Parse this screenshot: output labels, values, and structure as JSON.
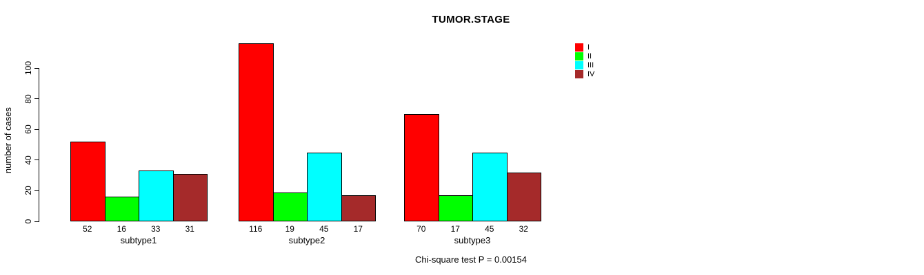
{
  "chart_data": {
    "type": "bar",
    "title": "TUMOR.STAGE",
    "xlabel": "",
    "ylabel": "number of cases",
    "categories": [
      "subtype1",
      "subtype2",
      "subtype3"
    ],
    "series": [
      {
        "name": "I",
        "color": "#FF0000",
        "values": [
          52,
          116,
          70
        ]
      },
      {
        "name": "II",
        "color": "#00FF00",
        "values": [
          16,
          19,
          17
        ]
      },
      {
        "name": "III",
        "color": "#00FFFF",
        "values": [
          33,
          45,
          45
        ]
      },
      {
        "name": "IV",
        "color": "#A52A2A",
        "values": [
          31,
          17,
          32
        ]
      }
    ],
    "yticks": [
      "0",
      "20",
      "40",
      "60",
      "80",
      "100"
    ],
    "ylim": [
      0,
      120
    ],
    "grid": false,
    "bar_border_color": "#000000",
    "legend_position": "top-right",
    "bar_value_labels": true,
    "footnote": "Chi-square test P = 0.00154"
  }
}
